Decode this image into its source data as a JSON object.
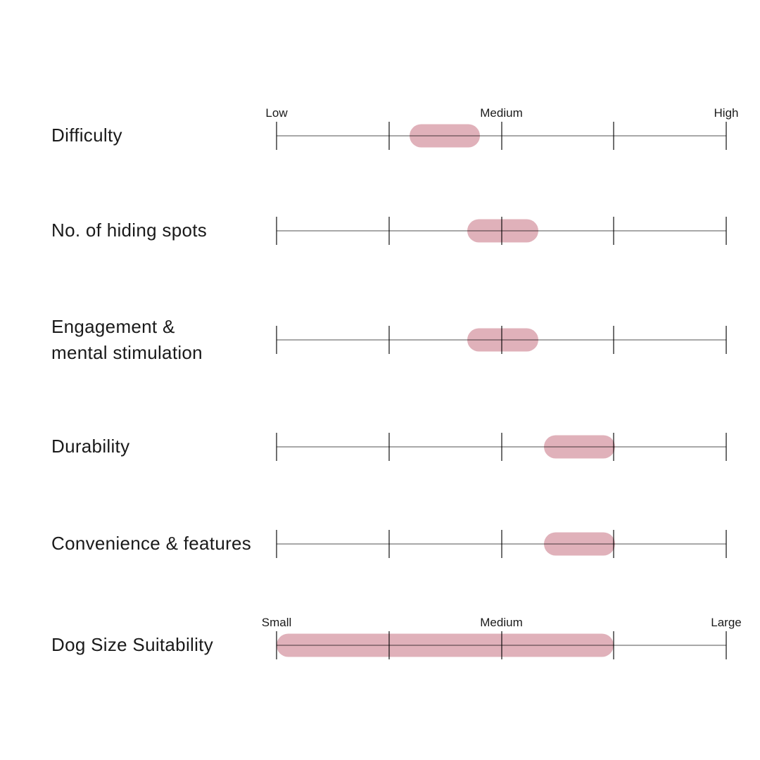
{
  "page": {
    "background": "#ffffff"
  },
  "colors": {
    "pill": "#e0b1ba",
    "baseline": "rgba(0,0,0,0.34)",
    "tick": "rgba(0,0,0,0.56)",
    "text": "#1a1a1a"
  },
  "chart_data": {
    "type": "range_bar",
    "title": "",
    "legend": null,
    "grid": "off",
    "scale": {
      "min": 0,
      "max": 4,
      "tick_count": 5,
      "anchor_labels_rating": [
        "Low",
        "Medium",
        "High"
      ],
      "anchor_labels_size": [
        "Small",
        "Medium",
        "Large"
      ]
    },
    "rows": [
      {
        "label_lines": [
          "Difficulty"
        ],
        "axis_labels": [
          "Low",
          "Medium",
          "High"
        ],
        "range_pct": [
          29.5,
          45.2
        ],
        "value_range": [
          1.2,
          1.8
        ]
      },
      {
        "label_lines": [
          "No. of hiding spots"
        ],
        "axis_labels": null,
        "range_pct": [
          42.4,
          58.2
        ],
        "value_range": [
          1.7,
          2.3
        ]
      },
      {
        "label_lines": [
          "Engagement &",
          "mental stimulation"
        ],
        "axis_labels": null,
        "range_pct": [
          42.4,
          58.2
        ],
        "value_range": [
          1.7,
          2.3
        ]
      },
      {
        "label_lines": [
          "Durability"
        ],
        "axis_labels": null,
        "range_pct": [
          59.5,
          75.3
        ],
        "value_range": [
          2.4,
          3.0
        ]
      },
      {
        "label_lines": [
          "Convenience & features"
        ],
        "axis_labels": null,
        "range_pct": [
          59.5,
          75.3
        ],
        "value_range": [
          2.4,
          3.0
        ]
      },
      {
        "label_lines": [
          "Dog Size Suitability"
        ],
        "axis_labels": [
          "Small",
          "Medium",
          "Large"
        ],
        "range_pct": [
          0,
          75
        ],
        "value_range": [
          0,
          3.0
        ]
      }
    ]
  }
}
